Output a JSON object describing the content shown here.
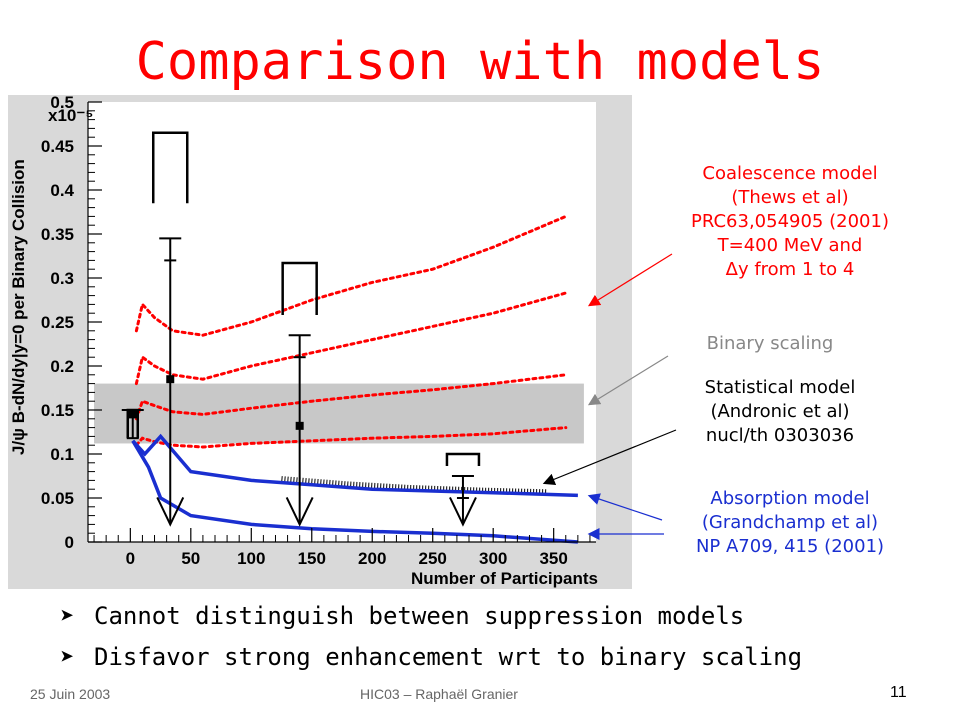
{
  "slide": {
    "title": "Comparison with models",
    "bullets": [
      "Cannot distinguish between suppression models",
      "Disfavor strong enhancement wrt to binary scaling"
    ],
    "footer_left": "25 Juin 2003",
    "footer_center": "HIC03 – Raphaël Granier",
    "page_number": "11"
  },
  "annotations": {
    "coalescence": [
      "Coalescence model",
      "(Thews et al)",
      "PRC63,054905 (2001)",
      "T=400 MeV and",
      "Δy from 1 to 4"
    ],
    "binary": [
      "Binary scaling"
    ],
    "statistical": [
      "Statistical model",
      "(Andronic et al)",
      "nucl/th 0303036"
    ],
    "absorption": [
      "Absorption model",
      "(Grandchamp et al)",
      "NP A709, 415 (2001)"
    ]
  },
  "colors": {
    "title": "#ff0000",
    "coalescence": "#ff0000",
    "binary": "#888888",
    "statistical": "#000000",
    "absorption": "#1a2fd0",
    "frame": "#d9d9d9",
    "band": "#c8c8c8"
  },
  "chart_data": {
    "type": "scatter",
    "xlabel": "Number of Participants",
    "ylabel": "J/ψ  B-dN/dy|y=0 per Binary Collision",
    "y_multiplier": "x10⁻⁵",
    "xlim": [
      -35,
      385
    ],
    "ylim": [
      0,
      0.5
    ],
    "x_ticks": [
      0,
      50,
      100,
      150,
      200,
      250,
      300,
      350
    ],
    "y_ticks": [
      0,
      0.05,
      0.1,
      0.15,
      0.2,
      0.25,
      0.3,
      0.35,
      0.4,
      0.45,
      0.5
    ],
    "grid": false,
    "points": [
      {
        "x": 2,
        "y": 0.145,
        "bar_low": 0.118,
        "bar_high": 0.15,
        "arrow": false,
        "bracket_low": 0.118,
        "bracket_high": 0.15
      },
      {
        "x": 33,
        "y": 0.185,
        "bar_low": 0.02,
        "bar_high": 0.345,
        "arrow": true,
        "bracket_low": 0.385,
        "bracket_high": 0.465
      },
      {
        "x": 140,
        "y": 0.132,
        "bar_low": 0.02,
        "bar_high": 0.235,
        "arrow": true,
        "bracket_low": 0.258,
        "bracket_high": 0.317
      },
      {
        "x": 275,
        "y": 0,
        "bar_low": 0.02,
        "bar_high": 0.075,
        "arrow": true,
        "bracket_low": 0.1,
        "bracket_high": 0.1
      }
    ],
    "binary_band": {
      "x": [
        -30,
        375
      ],
      "y_low": 0.112,
      "y_high": 0.18
    },
    "series": [
      {
        "name": "Coalescence upper",
        "style": "dotted",
        "color": "#ff0000",
        "x": [
          5,
          10,
          20,
          35,
          60,
          100,
          150,
          200,
          250,
          300,
          360
        ],
        "y": [
          0.24,
          0.27,
          0.255,
          0.24,
          0.235,
          0.25,
          0.275,
          0.295,
          0.31,
          0.335,
          0.37
        ]
      },
      {
        "name": "Coalescence mid-high",
        "style": "dotted",
        "color": "#ff0000",
        "x": [
          5,
          10,
          20,
          35,
          60,
          100,
          150,
          200,
          250,
          300,
          360
        ],
        "y": [
          0.18,
          0.21,
          0.2,
          0.19,
          0.185,
          0.2,
          0.215,
          0.23,
          0.245,
          0.26,
          0.283
        ]
      },
      {
        "name": "Coalescence mid-low",
        "style": "dotted",
        "color": "#ff0000",
        "x": [
          5,
          10,
          20,
          35,
          60,
          100,
          150,
          200,
          250,
          300,
          360
        ],
        "y": [
          0.14,
          0.16,
          0.155,
          0.148,
          0.145,
          0.152,
          0.16,
          0.167,
          0.173,
          0.18,
          0.19
        ]
      },
      {
        "name": "Coalescence lower",
        "style": "dotted",
        "color": "#ff0000",
        "x": [
          5,
          10,
          20,
          35,
          60,
          100,
          150,
          200,
          250,
          300,
          360
        ],
        "y": [
          0.11,
          0.118,
          0.114,
          0.11,
          0.108,
          0.112,
          0.115,
          0.118,
          0.12,
          0.123,
          0.13
        ]
      },
      {
        "name": "Statistical model",
        "style": "hatched",
        "color": "#000000",
        "x": [
          125,
          180,
          230,
          290,
          345
        ],
        "y": [
          0.072,
          0.066,
          0.062,
          0.059,
          0.057
        ]
      },
      {
        "name": "Absorption upper",
        "style": "solid",
        "color": "#1a2fd0",
        "x": [
          2,
          12,
          25,
          50,
          100,
          150,
          200,
          250,
          300,
          370
        ],
        "y": [
          0.115,
          0.1,
          0.12,
          0.08,
          0.07,
          0.065,
          0.06,
          0.058,
          0.056,
          0.053
        ]
      },
      {
        "name": "Absorption lower",
        "style": "solid",
        "color": "#1a2fd0",
        "x": [
          2,
          15,
          25,
          50,
          100,
          150,
          200,
          250,
          300,
          370
        ],
        "y": [
          0.115,
          0.085,
          0.05,
          0.03,
          0.02,
          0.015,
          0.012,
          0.01,
          0.007,
          0.0
        ]
      }
    ]
  }
}
